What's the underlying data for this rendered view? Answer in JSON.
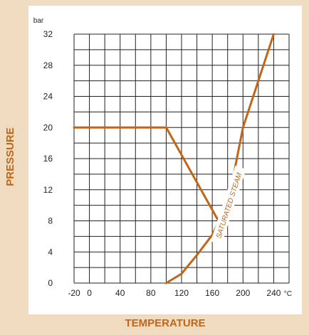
{
  "chart_data": {
    "type": "line",
    "xlabel": "TEMPERATURE",
    "ylabel": "PRESSURE",
    "x_unit": "°C",
    "y_unit": "bar",
    "xlim": [
      -20,
      260
    ],
    "ylim": [
      0,
      32
    ],
    "x_ticks": [
      -20,
      0,
      40,
      80,
      120,
      160,
      200,
      240
    ],
    "y_ticks": [
      0,
      4,
      8,
      12,
      16,
      20,
      24,
      28,
      32
    ],
    "grid": true,
    "line_color": "#c0661a",
    "series": [
      {
        "name": "",
        "x": [
          -20,
          100,
          168
        ],
        "y": [
          20,
          20,
          8
        ]
      },
      {
        "name": "SATURATED STEAM",
        "x": [
          100,
          120,
          140,
          160,
          170,
          180,
          200,
          220,
          240
        ],
        "y": [
          0,
          1.2,
          3.6,
          6.2,
          8.2,
          10.0,
          20.0,
          26.0,
          32.0
        ]
      }
    ],
    "annotations": [
      {
        "text": "SATURATED STEAM",
        "x": 181,
        "y": 10
      }
    ]
  }
}
